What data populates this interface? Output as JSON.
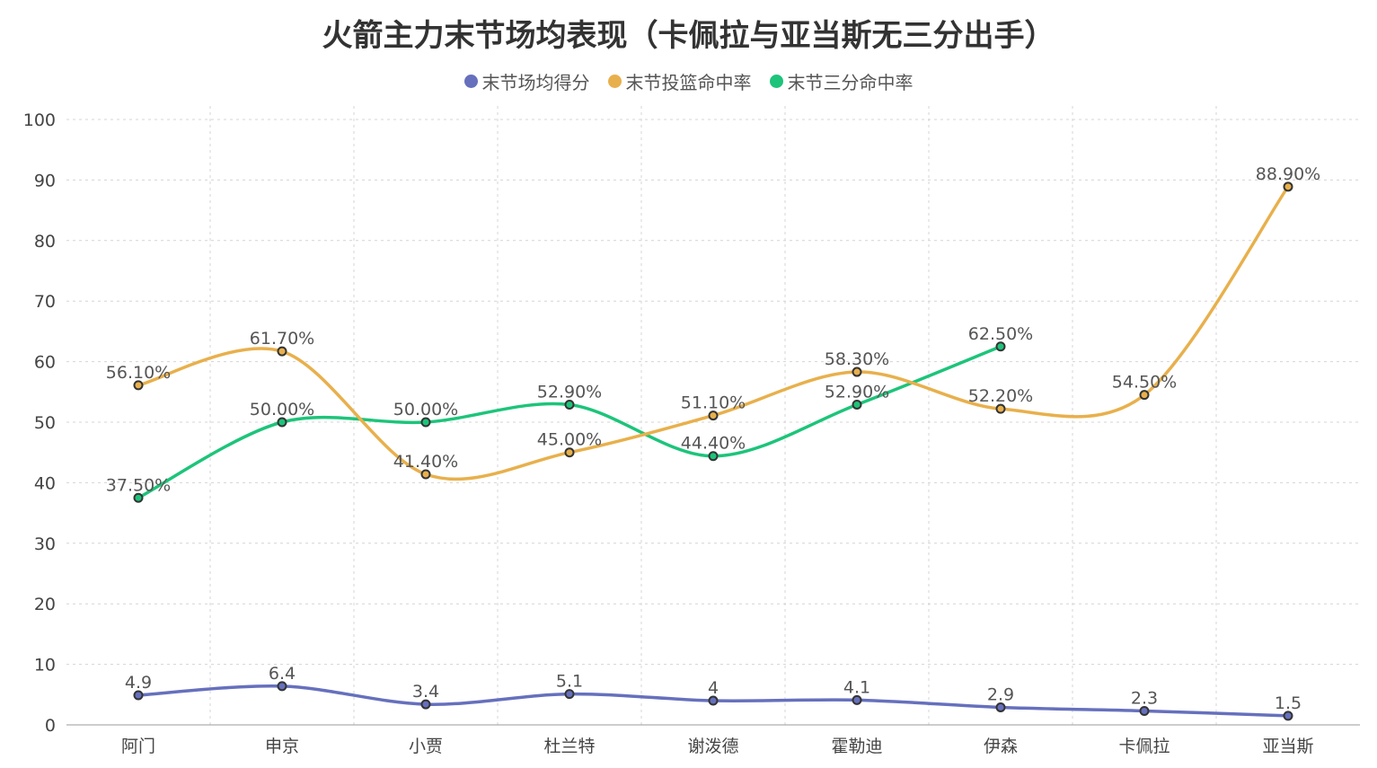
{
  "title": "火箭主力末节场均表现（卡佩拉与亚当斯无三分出手）",
  "legend": [
    {
      "label": "末节场均得分",
      "color": "#6670bd"
    },
    {
      "label": "末节投篮命中率",
      "color": "#e8b04c"
    },
    {
      "label": "末节三分命中率",
      "color": "#1dc47a"
    }
  ],
  "chart_data": {
    "type": "line",
    "categories": [
      "阿门",
      "申京",
      "小贾",
      "杜兰特",
      "谢泼德",
      "霍勒迪",
      "伊森",
      "卡佩拉",
      "亚当斯"
    ],
    "ylim": [
      0,
      100
    ],
    "yticks": [
      0,
      10,
      20,
      30,
      40,
      50,
      60,
      70,
      80,
      90,
      100
    ],
    "grid": true,
    "smooth": true,
    "legend_position": "top-center",
    "series": [
      {
        "name": "末节场均得分",
        "color": "#6670bd",
        "values": [
          4.9,
          6.4,
          3.4,
          5.1,
          4.0,
          4.1,
          2.9,
          2.3,
          1.5
        ],
        "labels": [
          "4.9",
          "6.4",
          "3.4",
          "5.1",
          "4",
          "4.1",
          "2.9",
          "2.3",
          "1.5"
        ]
      },
      {
        "name": "末节投篮命中率",
        "color": "#e8b04c",
        "values": [
          56.1,
          61.7,
          41.4,
          45.0,
          51.1,
          58.3,
          52.2,
          54.5,
          88.9
        ],
        "labels": [
          "56.10%",
          "61.70%",
          "41.40%",
          "45.00%",
          "51.10%",
          "58.30%",
          "52.20%",
          "54.50%",
          "88.90%"
        ]
      },
      {
        "name": "末节三分命中率",
        "color": "#1dc47a",
        "values": [
          37.5,
          50.0,
          50.0,
          52.9,
          44.4,
          52.9,
          62.5,
          null,
          null
        ],
        "labels": [
          "37.50%",
          "50.00%",
          "50.00%",
          "52.90%",
          "44.40%",
          "52.90%",
          "62.50%",
          "",
          ""
        ]
      }
    ]
  }
}
